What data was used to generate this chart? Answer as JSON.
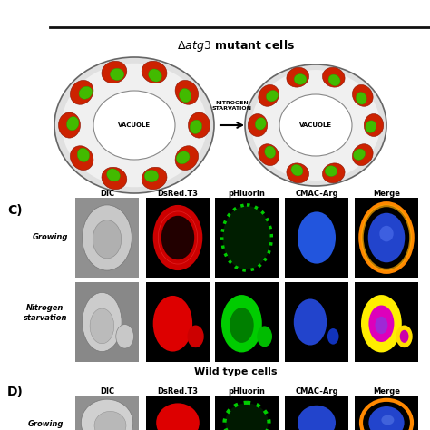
{
  "title_top": "Δatg3 mutant cells",
  "section_c_label": "C)",
  "section_d_label": "D)",
  "row_labels_c": [
    "Growing",
    "Nitrogen\nstarvation"
  ],
  "col_labels": [
    "DIC",
    "DsRed.T3",
    "pHluorin",
    "CMAC-Arg",
    "Merge"
  ],
  "wild_type_title": "Wild type cells",
  "d_col_labels": [
    "DIC",
    "DsRed.T3",
    "pHluorin",
    "CMAC-Arg",
    "Merge"
  ],
  "bg_color": "#ffffff",
  "separator_color": "#222222",
  "vacuole_label": "VACUOLE",
  "arrow_label": "NITROGEN\nSTARVATION",
  "diagram_title_fontsize": 9,
  "col_label_fontsize": 6,
  "row_label_fontsize": 6,
  "section_label_fontsize": 10,
  "wild_type_fontsize": 8
}
